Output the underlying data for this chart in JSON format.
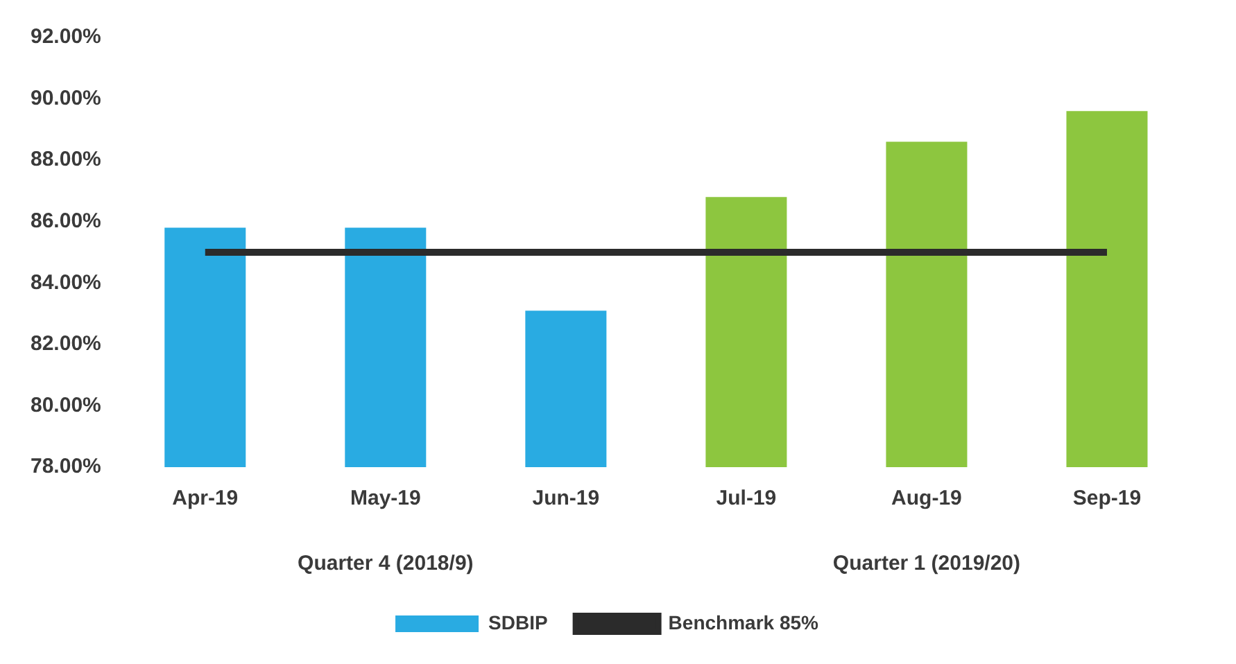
{
  "chart_data": {
    "type": "bar",
    "categories": [
      "Apr-19",
      "May-19",
      "Jun-19",
      "Jul-19",
      "Aug-19",
      "Sep-19"
    ],
    "series": [
      {
        "name": "SDBIP",
        "color": "#29abe2",
        "colors": [
          "#29abe2",
          "#29abe2",
          "#29abe2",
          "#8dc63f",
          "#8dc63f",
          "#8dc63f"
        ],
        "values": [
          85.8,
          85.8,
          83.1,
          86.8,
          88.6,
          89.6
        ]
      },
      {
        "name": "Benchmark 85%",
        "type": "line",
        "color": "#2b2b2b",
        "values": [
          85,
          85,
          85,
          85,
          85,
          85
        ]
      }
    ],
    "ylim": [
      78,
      92
    ],
    "yticks": [
      {
        "value": 78,
        "label": "78.00%"
      },
      {
        "value": 80,
        "label": "80.00%"
      },
      {
        "value": 82,
        "label": "82.00%"
      },
      {
        "value": 84,
        "label": "84.00%"
      },
      {
        "value": 86,
        "label": "86.00%"
      },
      {
        "value": 88,
        "label": "88.00%"
      },
      {
        "value": 90,
        "label": "90.00%"
      },
      {
        "value": 92,
        "label": "92.00%"
      }
    ],
    "annotations": [
      "Quarter 4 (2018/9)",
      "Quarter 1 (2019/20)"
    ],
    "grid": false,
    "legend": "bottom",
    "marker": "none"
  }
}
